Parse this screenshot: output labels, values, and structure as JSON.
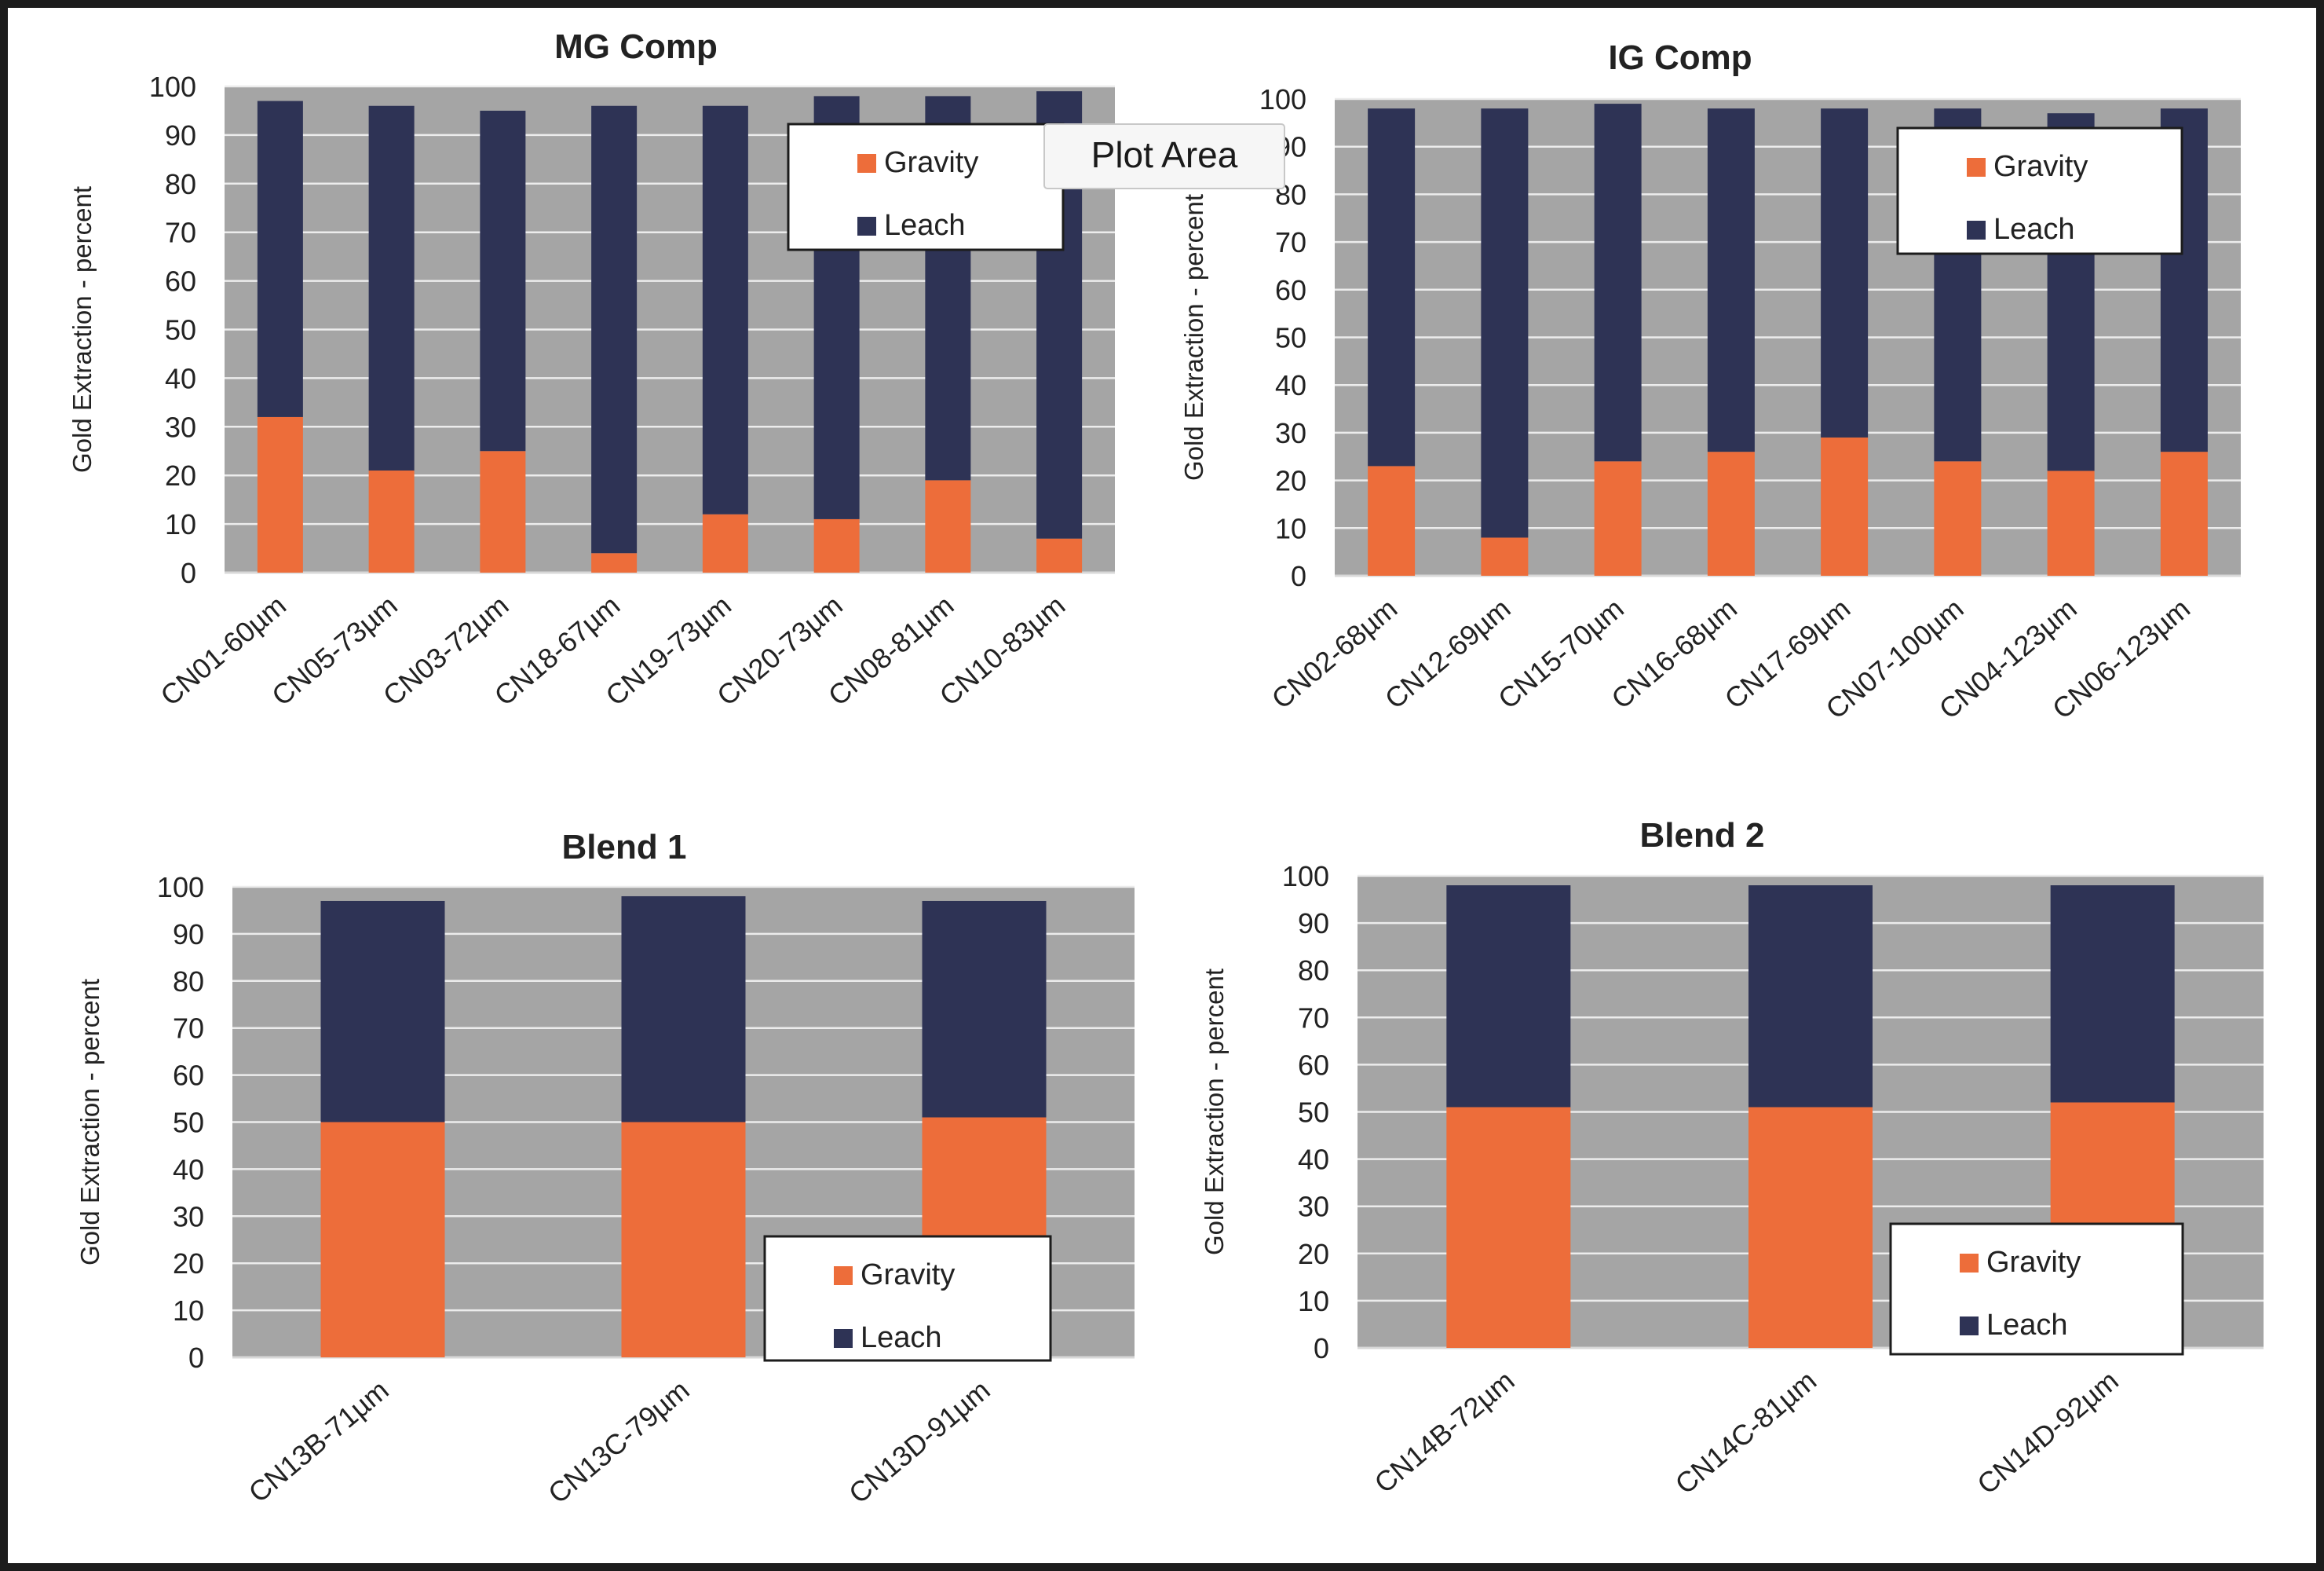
{
  "colors": {
    "gravity": "#ED6D3A",
    "leach": "#2E3355",
    "plot_bg": "#A5A5A5",
    "grid": "#ECECEC",
    "text": "#222222"
  },
  "tooltip": {
    "label": "Plot Area"
  },
  "chart_data": [
    {
      "type": "bar",
      "stacked": true,
      "title": "MG Comp",
      "xlabel": "",
      "ylabel": "Gold Extraction - percent",
      "ylim": [
        0,
        100
      ],
      "yticks": [
        0,
        10,
        20,
        30,
        40,
        50,
        60,
        70,
        80,
        90,
        100
      ],
      "grid": true,
      "legend_position": "top-right",
      "categories": [
        "CN01-60µm",
        "CN05-73µm",
        "CN03-72µm",
        "CN18-67µm",
        "CN19-73µm",
        "CN20-73µm",
        "CN08-81µm",
        "CN10-83µm"
      ],
      "series": [
        {
          "name": "Gravity",
          "values": [
            32,
            21,
            25,
            4,
            12,
            11,
            19,
            7
          ]
        },
        {
          "name": "Leach",
          "values": [
            65,
            75,
            70,
            92,
            84,
            87,
            79,
            92
          ]
        }
      ]
    },
    {
      "type": "bar",
      "stacked": true,
      "title": "IG Comp",
      "xlabel": "",
      "ylabel": "Gold Extraction - percent",
      "ylim": [
        0,
        100
      ],
      "yticks": [
        0,
        10,
        20,
        30,
        40,
        50,
        60,
        70,
        80,
        90,
        100
      ],
      "grid": true,
      "legend_position": "top-right",
      "categories": [
        "CN02-68µm",
        "CN12-69µm",
        "CN15-70µm",
        "CN16-68µm",
        "CN17-69µm",
        "CN07-100µm",
        "CN04-123µm",
        "CN06-123µm"
      ],
      "series": [
        {
          "name": "Gravity",
          "values": [
            23,
            8,
            24,
            26,
            29,
            24,
            22,
            26
          ]
        },
        {
          "name": "Leach",
          "values": [
            75,
            90,
            75,
            72,
            69,
            74,
            75,
            72
          ]
        }
      ]
    },
    {
      "type": "bar",
      "stacked": true,
      "title": "Blend 1",
      "xlabel": "",
      "ylabel": "Gold Extraction - percent",
      "ylim": [
        0,
        100
      ],
      "yticks": [
        0,
        10,
        20,
        30,
        40,
        50,
        60,
        70,
        80,
        90,
        100
      ],
      "grid": true,
      "legend_position": "bottom-right",
      "categories": [
        "CN13B-71µm",
        "CN13C-79µm",
        "CN13D-91µm"
      ],
      "series": [
        {
          "name": "Gravity",
          "values": [
            50,
            50,
            51
          ]
        },
        {
          "name": "Leach",
          "values": [
            47,
            48,
            46
          ]
        }
      ]
    },
    {
      "type": "bar",
      "stacked": true,
      "title": "Blend 2",
      "xlabel": "",
      "ylabel": "Gold Extraction - percent",
      "ylim": [
        0,
        100
      ],
      "yticks": [
        0,
        10,
        20,
        30,
        40,
        50,
        60,
        70,
        80,
        90,
        100
      ],
      "grid": true,
      "legend_position": "bottom-right",
      "categories": [
        "CN14B-72µm",
        "CN14C-81µm",
        "CN14D-92µm"
      ],
      "series": [
        {
          "name": "Gravity",
          "values": [
            51,
            51,
            52
          ]
        },
        {
          "name": "Leach",
          "values": [
            47,
            47,
            46
          ]
        }
      ]
    }
  ]
}
